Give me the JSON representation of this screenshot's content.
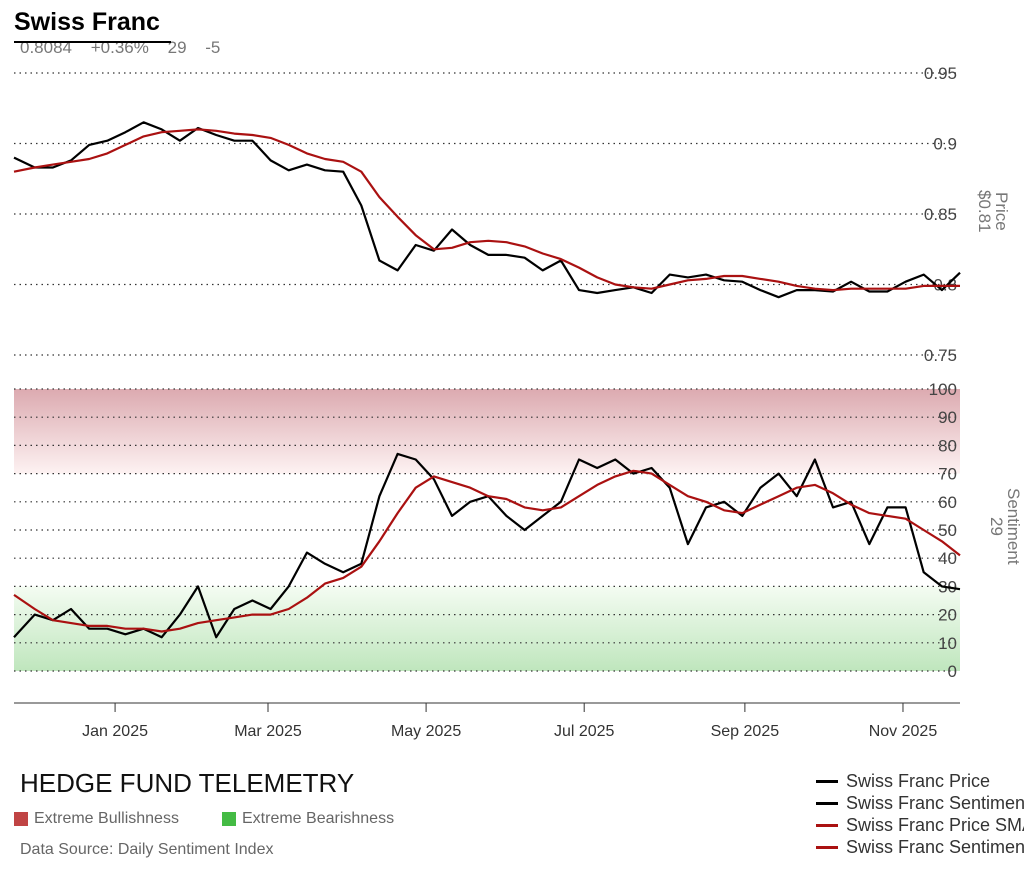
{
  "header": {
    "title": "Swiss Franc",
    "price": "0.8084",
    "change": "+0.36%",
    "sentiment": "29",
    "sentiment_change": "-5"
  },
  "footer": {
    "brand": "HEDGE FUND TELEMETRY",
    "bull_label": "Extreme Bullishness",
    "bear_label": "Extreme Bearishness",
    "source": "Data Source: Daily Sentiment Index"
  },
  "colors": {
    "price": "#000000",
    "sma": "#aa1111",
    "bull": "#c04444",
    "bear": "#44bb44"
  },
  "chart_data": {
    "type": "line",
    "x_ticks": [
      "Jan 2025",
      "Mar 2025",
      "May 2025",
      "Jul 2025",
      "Sep 2025",
      "Nov 2025"
    ],
    "x_tick_dates": [
      "2025-01-01",
      "2025-03-01",
      "2025-05-01",
      "2025-07-01",
      "2025-09-01",
      "2025-11-01"
    ],
    "xlim": [
      "2024-11-23",
      "2025-11-23"
    ],
    "price_axis": {
      "label": "Price",
      "current": "$0.81",
      "ylim": [
        0.75,
        0.95
      ],
      "ticks": [
        "0.75",
        "0.8",
        "0.85",
        "0.9",
        "0.95"
      ]
    },
    "sentiment_axis": {
      "label": "Sentiment",
      "current": "29",
      "ylim": [
        0,
        100
      ],
      "ticks": [
        "0",
        "10",
        "20",
        "30",
        "40",
        "50",
        "60",
        "70",
        "80",
        "90",
        "100"
      ],
      "extreme_bullish_above": 70,
      "extreme_bearish_below": 30
    },
    "x": [
      "2024-11-23",
      "2024-12-01",
      "2024-12-08",
      "2024-12-15",
      "2024-12-22",
      "2024-12-29",
      "2025-01-05",
      "2025-01-12",
      "2025-01-19",
      "2025-01-26",
      "2025-02-02",
      "2025-02-09",
      "2025-02-16",
      "2025-02-23",
      "2025-03-02",
      "2025-03-09",
      "2025-03-16",
      "2025-03-23",
      "2025-03-30",
      "2025-04-06",
      "2025-04-13",
      "2025-04-20",
      "2025-04-27",
      "2025-05-04",
      "2025-05-11",
      "2025-05-18",
      "2025-05-25",
      "2025-06-01",
      "2025-06-08",
      "2025-06-15",
      "2025-06-22",
      "2025-06-29",
      "2025-07-06",
      "2025-07-13",
      "2025-07-20",
      "2025-07-27",
      "2025-08-03",
      "2025-08-10",
      "2025-08-17",
      "2025-08-24",
      "2025-08-31",
      "2025-09-07",
      "2025-09-14",
      "2025-09-21",
      "2025-09-28",
      "2025-10-05",
      "2025-10-12",
      "2025-10-19",
      "2025-10-26",
      "2025-11-02",
      "2025-11-09",
      "2025-11-16",
      "2025-11-23"
    ],
    "series": [
      {
        "name": "Swiss Franc Price",
        "axis": "price",
        "color": "#000000",
        "values": [
          0.89,
          0.883,
          0.883,
          0.888,
          0.899,
          0.902,
          0.908,
          0.915,
          0.91,
          0.902,
          0.911,
          0.906,
          0.902,
          0.902,
          0.888,
          0.881,
          0.885,
          0.881,
          0.88,
          0.856,
          0.817,
          0.81,
          0.828,
          0.824,
          0.839,
          0.828,
          0.821,
          0.821,
          0.819,
          0.81,
          0.817,
          0.796,
          0.794,
          0.796,
          0.798,
          0.794,
          0.807,
          0.805,
          0.807,
          0.803,
          0.802,
          0.796,
          0.791,
          0.796,
          0.796,
          0.795,
          0.802,
          0.795,
          0.795,
          0.802,
          0.807,
          0.796,
          0.8084
        ]
      },
      {
        "name": "Swiss Franc Sentiment",
        "axis": "sentiment",
        "color": "#000000",
        "values": [
          12,
          20,
          18,
          22,
          15,
          15,
          13,
          15,
          12,
          20,
          30,
          12,
          22,
          25,
          22,
          30,
          42,
          38,
          35,
          38,
          62,
          77,
          75,
          68,
          55,
          60,
          62,
          55,
          50,
          55,
          60,
          75,
          72,
          75,
          70,
          72,
          65,
          45,
          58,
          60,
          55,
          65,
          70,
          62,
          75,
          58,
          60,
          45,
          58,
          58,
          35,
          30,
          29
        ]
      },
      {
        "name": "Swiss Franc Price SMA",
        "axis": "price",
        "color": "#aa1111",
        "values": [
          0.88,
          0.883,
          0.885,
          0.887,
          0.889,
          0.893,
          0.899,
          0.905,
          0.908,
          0.909,
          0.91,
          0.909,
          0.907,
          0.906,
          0.904,
          0.899,
          0.893,
          0.889,
          0.887,
          0.88,
          0.862,
          0.848,
          0.835,
          0.825,
          0.826,
          0.83,
          0.831,
          0.83,
          0.827,
          0.822,
          0.818,
          0.812,
          0.805,
          0.8,
          0.798,
          0.797,
          0.8,
          0.803,
          0.804,
          0.806,
          0.806,
          0.804,
          0.802,
          0.799,
          0.797,
          0.796,
          0.797,
          0.797,
          0.797,
          0.797,
          0.799,
          0.799,
          0.799
        ]
      },
      {
        "name": "Swiss Franc Sentiment SMA",
        "axis": "sentiment",
        "color": "#aa1111",
        "values": [
          27,
          22,
          18,
          17,
          16,
          16,
          15,
          15,
          14,
          15,
          17,
          18,
          19,
          20,
          20,
          22,
          26,
          31,
          33,
          37,
          46,
          56,
          65,
          69,
          67,
          65,
          62,
          61,
          58,
          57,
          58,
          62,
          66,
          69,
          71,
          70,
          66,
          62,
          60,
          57,
          56,
          59,
          62,
          65,
          66,
          63,
          59,
          56,
          55,
          54,
          50,
          46,
          41
        ]
      }
    ]
  }
}
